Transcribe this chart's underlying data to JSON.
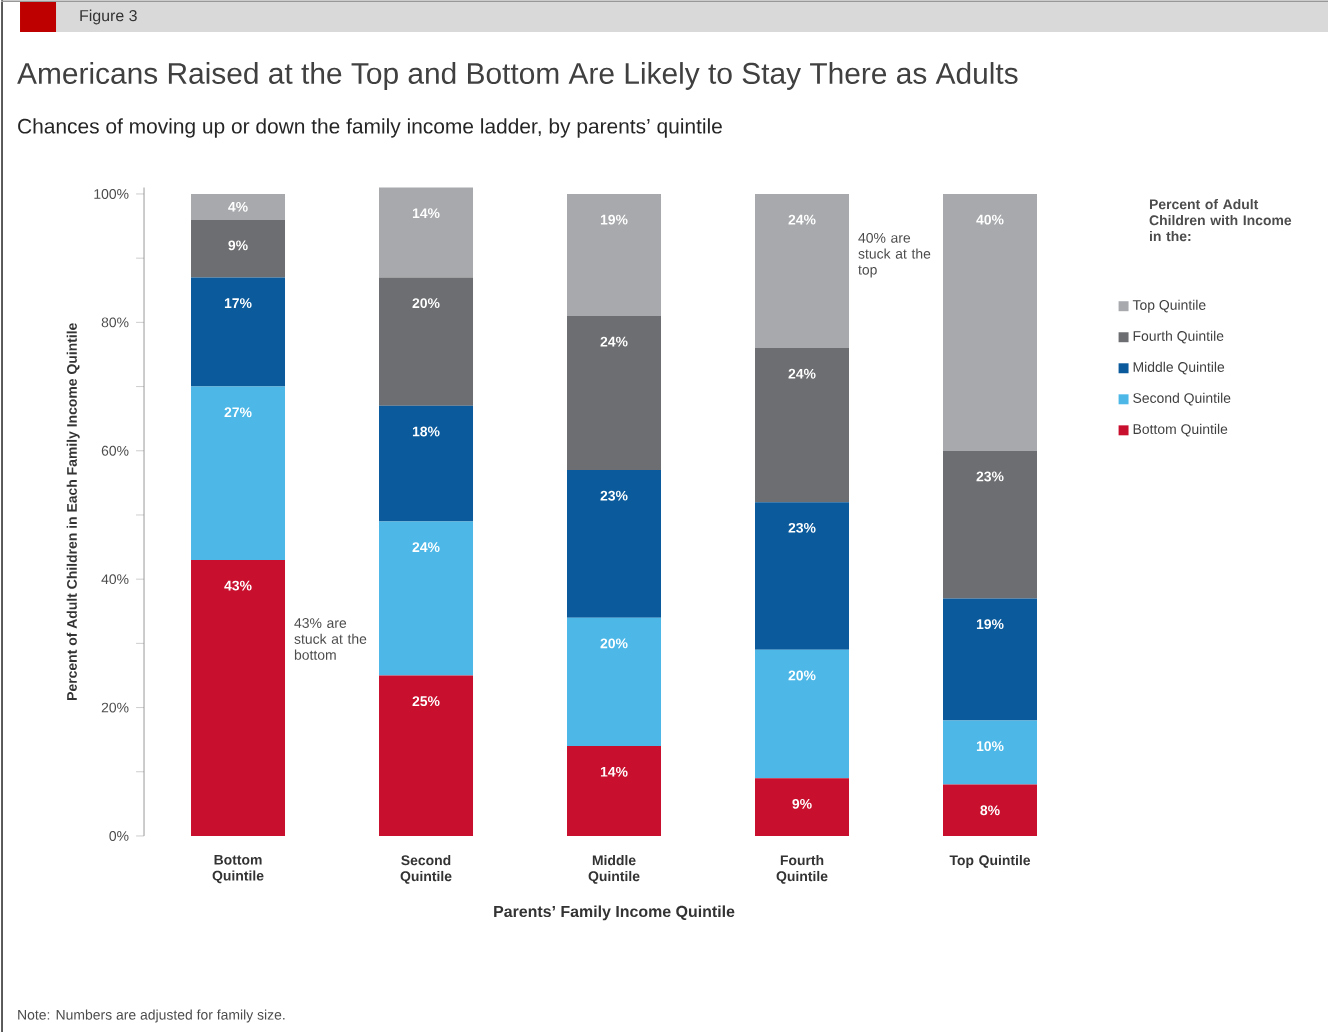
{
  "chart_data": {
    "type": "bar",
    "stacked": true,
    "title": "Americans Raised at the Top and Bottom Are Likely to Stay There as Adults",
    "subtitle": "Chances of moving up or down the family income ladder, by parents’ quintile",
    "xlabel": "Parents’ Family Income Quintile",
    "ylabel": "Percent of Adult Children in Each Family Income Quintile",
    "legend_title": "Percent of Adult Children with Income in the:",
    "categories": [
      "Bottom Quintile",
      "Second Quintile",
      "Middle Quintile",
      "Fourth Quintile",
      "Top Quintile"
    ],
    "series": [
      {
        "name": "Bottom Quintile",
        "color": "#c8102e",
        "values": [
          43,
          25,
          14,
          9,
          8
        ],
        "value_labels": [
          "43%",
          "25%",
          "14%",
          "9%",
          "8%"
        ]
      },
      {
        "name": "Second Quintile",
        "color": "#4db8e8",
        "values": [
          27,
          24,
          20,
          20,
          10
        ],
        "value_labels": [
          "27%",
          "24%",
          "20%",
          "20%",
          "10%"
        ]
      },
      {
        "name": "Middle Quintile",
        "color": "#0a5a9c",
        "values": [
          17,
          18,
          23,
          23,
          19
        ],
        "value_labels": [
          "17%",
          "18%",
          "23%",
          "23%",
          "19%"
        ]
      },
      {
        "name": "Fourth Quintile",
        "color": "#6d6e71",
        "values": [
          9,
          20,
          24,
          24,
          23
        ],
        "value_labels": [
          "9%",
          "20%",
          "24%",
          "24%",
          "23%"
        ]
      },
      {
        "name": "Top Quintile",
        "color": "#a7a9ac",
        "values": [
          4,
          14,
          19,
          24,
          40
        ],
        "value_labels": [
          "4%",
          "14%",
          "19%",
          "24%",
          "40%"
        ]
      }
    ],
    "ylim": [
      0,
      101
    ],
    "yticks": [
      {
        "value": 0,
        "label": "0%"
      },
      {
        "value": 10,
        "label": null
      },
      {
        "value": 20,
        "label": "20%"
      },
      {
        "value": 30,
        "label": null
      },
      {
        "value": 40,
        "label": "40%"
      },
      {
        "value": 50,
        "label": null
      },
      {
        "value": 60,
        "label": "60%"
      },
      {
        "value": 70,
        "label": null
      },
      {
        "value": 80,
        "label": "80%"
      },
      {
        "value": 90,
        "label": null
      },
      {
        "value": 100,
        "label": "100%"
      }
    ],
    "legend": "right",
    "annotations": [
      "Figure 3",
      "43% are stuck at the bottom",
      "40% are stuck at the top",
      "Note: Numbers are adjusted for family size."
    ]
  }
}
